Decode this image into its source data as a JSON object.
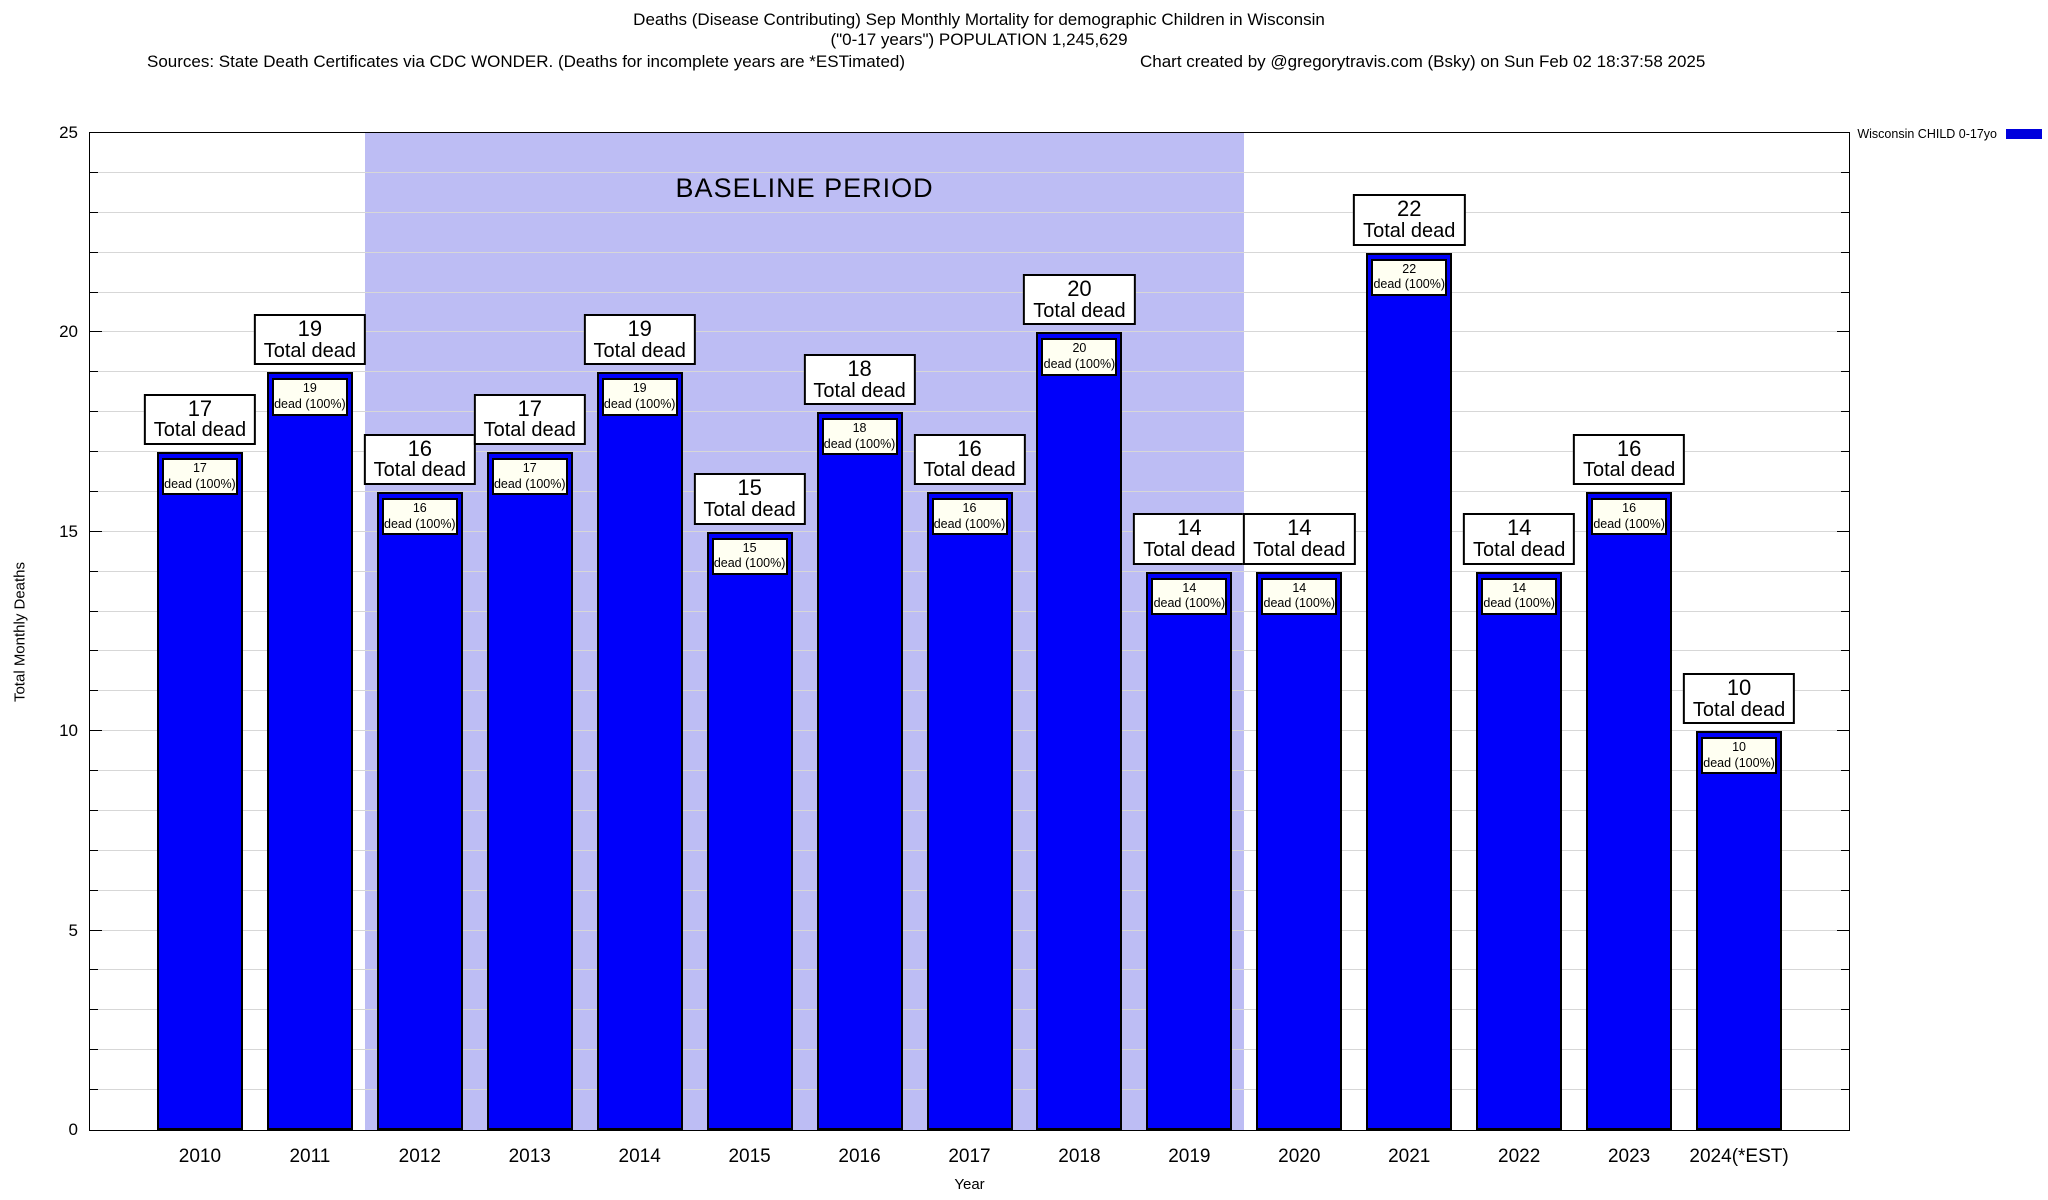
{
  "header": {
    "title_line1": "Deaths (Disease Contributing) Sep Monthly Mortality for demographic Children in Wisconsin",
    "title_line2": "(\"0-17 years\") POPULATION 1,245,629",
    "sources": "Sources: State Death Certificates via CDC WONDER. (Deaths for incomplete years are *ESTimated)",
    "credit": "Chart created by @gregorytravis.com (Bsky) on Sun Feb 02 18:37:58 2025"
  },
  "legend": {
    "label": "Wisconsin CHILD 0-17yo",
    "swatch_color": "#0000dd",
    "position": "top-right"
  },
  "chart_data": {
    "type": "bar",
    "title": "Deaths (Disease Contributing) Sep Monthly Mortality for demographic Children in Wisconsin (\"0-17 years\") POPULATION 1,245,629",
    "categories": [
      "2010",
      "2011",
      "2012",
      "2013",
      "2014",
      "2015",
      "2016",
      "2017",
      "2018",
      "2019",
      "2020",
      "2021",
      "2022",
      "2023",
      "2024(*EST)"
    ],
    "values": [
      17,
      19,
      16,
      17,
      19,
      15,
      18,
      16,
      20,
      14,
      14,
      22,
      14,
      16,
      10
    ],
    "series_name": "Wisconsin CHILD 0-17yo",
    "top_label_line2": "Total dead",
    "inner_label_line2": "dead (100%)",
    "xlabel": "Year",
    "ylabel": "Total Monthly Deaths",
    "ylim": [
      0,
      25
    ],
    "ytick_major_step": 5,
    "ytick_minor_step": 1,
    "grid": true,
    "bar_color": "#0000fa",
    "bar_border_color": "#000000",
    "baseline_region": {
      "label": "BASELINE PERIOD",
      "from_category": "2012",
      "to_category": "2019",
      "color": "#bdbdf4"
    }
  }
}
